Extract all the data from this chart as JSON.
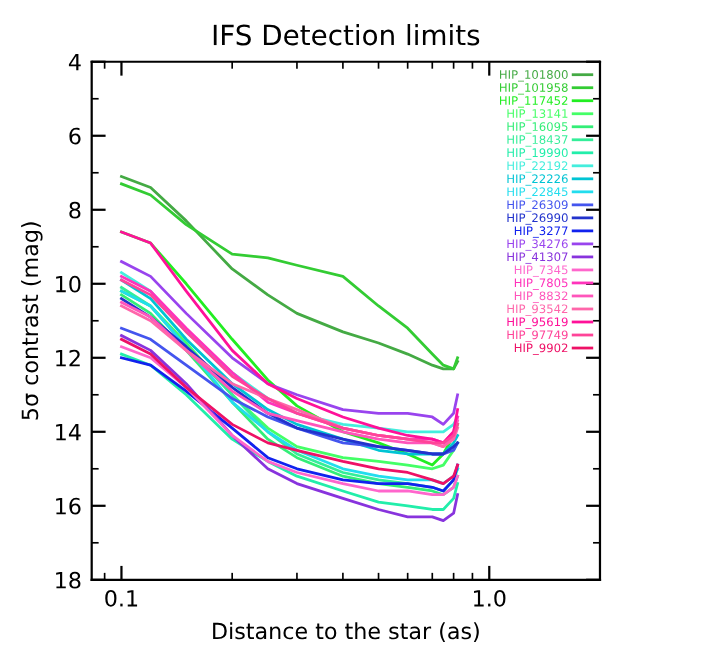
{
  "chart_data": {
    "type": "line",
    "title": "IFS Detection limits",
    "xlabel": "Distance to the star (as)",
    "ylabel": "5σ contrast (mag)",
    "log": "x",
    "xlim": [
      0.083,
      2.0
    ],
    "xticks": [
      {
        "value": 0.1,
        "label": "0.1"
      },
      {
        "value": 1.0,
        "label": "1.0"
      }
    ],
    "ylim": [
      18,
      4
    ],
    "yticks": [
      4,
      6,
      8,
      10,
      12,
      14,
      16,
      18
    ],
    "grid": false,
    "legend": "top right",
    "marker": "none",
    "line_style": "solid",
    "x": [
      0.1,
      0.12,
      0.15,
      0.2,
      0.25,
      0.3,
      0.4,
      0.5,
      0.6,
      0.7,
      0.75,
      0.8,
      0.82
    ],
    "series": [
      {
        "name": "HIP_101800",
        "color": "#44aa44",
        "values": [
          7.1,
          7.4,
          8.3,
          9.6,
          10.3,
          10.8,
          11.3,
          11.6,
          11.9,
          12.2,
          12.3,
          12.3,
          12.1
        ]
      },
      {
        "name": "HIP_101958",
        "color": "#33cc33",
        "values": [
          7.3,
          7.6,
          8.4,
          9.2,
          9.3,
          9.5,
          9.8,
          10.6,
          11.2,
          11.9,
          12.2,
          12.3,
          12.0
        ]
      },
      {
        "name": "HIP_117452",
        "color": "#22ee22",
        "values": [
          8.6,
          8.9,
          10.0,
          11.5,
          12.6,
          13.3,
          14.0,
          14.3,
          14.6,
          14.9,
          14.6,
          14.1,
          13.8
        ]
      },
      {
        "name": "HIP_13141",
        "color": "#44ff66",
        "values": [
          10.2,
          10.6,
          11.6,
          13.0,
          13.9,
          14.4,
          14.7,
          14.8,
          14.9,
          15.0,
          14.9,
          14.5,
          14.3
        ]
      },
      {
        "name": "HIP_16095",
        "color": "#33ee77",
        "values": [
          10.3,
          10.8,
          11.8,
          13.2,
          14.2,
          14.7,
          15.2,
          15.4,
          15.5,
          15.6,
          15.7,
          15.5,
          15.2
        ]
      },
      {
        "name": "HIP_18437",
        "color": "#33ee99",
        "values": [
          10.1,
          10.6,
          11.7,
          13.0,
          14.0,
          14.6,
          15.1,
          15.3,
          15.4,
          15.5,
          15.6,
          15.3,
          15.0
        ]
      },
      {
        "name": "HIP_19990",
        "color": "#22eeaa",
        "values": [
          11.9,
          12.2,
          13.0,
          14.2,
          14.8,
          15.2,
          15.6,
          15.9,
          16.0,
          16.1,
          16.1,
          15.8,
          15.4
        ]
      },
      {
        "name": "HIP_22192",
        "color": "#44eedd",
        "values": [
          9.7,
          10.2,
          11.3,
          12.4,
          13.1,
          13.5,
          13.8,
          13.9,
          14.0,
          14.0,
          14.0,
          13.8,
          13.6
        ]
      },
      {
        "name": "HIP_22226",
        "color": "#00c4d4",
        "values": [
          9.9,
          10.4,
          11.5,
          12.7,
          13.4,
          13.8,
          14.2,
          14.5,
          14.6,
          14.6,
          14.6,
          14.3,
          14.1
        ]
      },
      {
        "name": "HIP_22845",
        "color": "#22ddee",
        "values": [
          10.2,
          10.6,
          11.7,
          13.2,
          14.0,
          14.5,
          15.0,
          15.2,
          15.3,
          15.3,
          15.4,
          15.2,
          15.0
        ]
      },
      {
        "name": "HIP_26309",
        "color": "#4455ee",
        "values": [
          11.2,
          11.5,
          12.2,
          13.1,
          13.6,
          13.9,
          14.3,
          14.4,
          14.5,
          14.6,
          14.6,
          14.5,
          14.3
        ]
      },
      {
        "name": "HIP_26990",
        "color": "#2233cc",
        "values": [
          10.4,
          10.9,
          11.7,
          12.8,
          13.5,
          13.9,
          14.2,
          14.4,
          14.5,
          14.6,
          14.6,
          14.4,
          14.3
        ]
      },
      {
        "name": "HIP_3277",
        "color": "#1122ee",
        "values": [
          12.0,
          12.2,
          12.9,
          13.9,
          14.7,
          15.0,
          15.3,
          15.4,
          15.4,
          15.5,
          15.6,
          15.3,
          14.9
        ]
      },
      {
        "name": "HIP_34276",
        "color": "#9944ee",
        "values": [
          9.4,
          9.8,
          10.8,
          12.0,
          12.7,
          13.0,
          13.4,
          13.5,
          13.5,
          13.6,
          13.8,
          13.5,
          13.0
        ]
      },
      {
        "name": "HIP_41307",
        "color": "#8833dd",
        "values": [
          11.4,
          11.8,
          12.7,
          14.1,
          15.0,
          15.4,
          15.8,
          16.1,
          16.3,
          16.3,
          16.4,
          16.2,
          15.7
        ]
      },
      {
        "name": "HIP_7345",
        "color": "#ff66cc",
        "values": [
          11.7,
          12.0,
          12.8,
          14.1,
          14.8,
          15.1,
          15.4,
          15.6,
          15.6,
          15.7,
          15.7,
          15.5,
          15.2
        ]
      },
      {
        "name": "HIP_7805",
        "color": "#ff33bb",
        "values": [
          9.8,
          10.2,
          11.2,
          12.4,
          13.2,
          13.5,
          13.9,
          14.1,
          14.2,
          14.2,
          14.3,
          14.0,
          13.6
        ]
      },
      {
        "name": "HIP_8832",
        "color": "#ff55bb",
        "values": [
          10.5,
          10.9,
          11.8,
          12.9,
          13.5,
          13.7,
          14.0,
          14.2,
          14.3,
          14.3,
          14.4,
          14.1,
          13.7
        ]
      },
      {
        "name": "HIP_93542",
        "color": "#ff66aa",
        "values": [
          10.6,
          11.0,
          11.8,
          12.7,
          13.1,
          13.4,
          13.9,
          14.1,
          14.2,
          14.3,
          14.4,
          14.2,
          13.9
        ]
      },
      {
        "name": "HIP_95619",
        "color": "#ff1199",
        "values": [
          8.6,
          8.9,
          10.2,
          11.8,
          12.7,
          13.1,
          13.6,
          13.9,
          14.1,
          14.2,
          14.3,
          14.0,
          13.4
        ]
      },
      {
        "name": "HIP_97749",
        "color": "#ff4499",
        "values": [
          9.9,
          10.3,
          11.3,
          12.5,
          13.1,
          13.5,
          13.9,
          14.1,
          14.2,
          14.3,
          14.3,
          14.1,
          13.8
        ]
      },
      {
        "name": "HIP_9902",
        "color": "#ee1166",
        "values": [
          11.5,
          11.9,
          12.8,
          13.8,
          14.3,
          14.5,
          14.8,
          15.0,
          15.1,
          15.3,
          15.4,
          15.2,
          14.9
        ]
      }
    ]
  }
}
